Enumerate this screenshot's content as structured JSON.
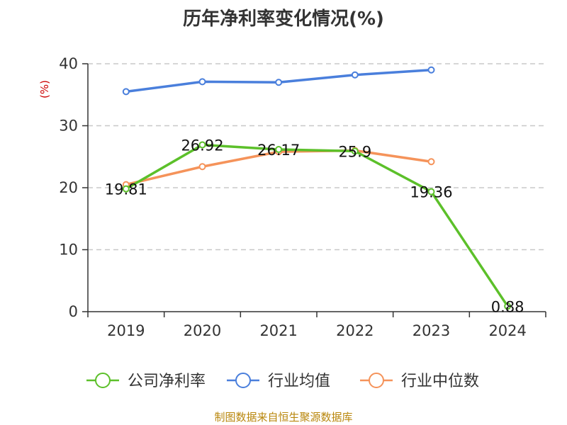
{
  "title": "历年净利率变化情况(%)",
  "source": "制图数据来自恒生聚源数据库",
  "chart_data": {
    "type": "line",
    "title": "历年净利率变化情况(%)",
    "ylabel": "(%)",
    "xlabel": "",
    "ylim": [
      0,
      40
    ],
    "yticks": [
      0,
      10,
      20,
      30,
      40
    ],
    "grid": true,
    "legend_position": "bottom",
    "categories": [
      "2019",
      "2020",
      "2021",
      "2022",
      "2023",
      "2024"
    ],
    "series": [
      {
        "name": "公司净利率",
        "color": "#5cc02a",
        "values": [
          19.81,
          26.92,
          26.17,
          25.9,
          19.36,
          0.88
        ],
        "labels": [
          "19.81",
          "26.92",
          "26.17",
          "25.9",
          "19.36",
          "0.88"
        ]
      },
      {
        "name": "行业均值",
        "color": "#4a7fdc",
        "values": [
          35.5,
          37.1,
          37.0,
          38.2,
          39.0,
          null
        ]
      },
      {
        "name": "行业中位数",
        "color": "#f5935a",
        "values": [
          20.5,
          23.4,
          25.8,
          26.0,
          24.2,
          null
        ]
      }
    ]
  }
}
